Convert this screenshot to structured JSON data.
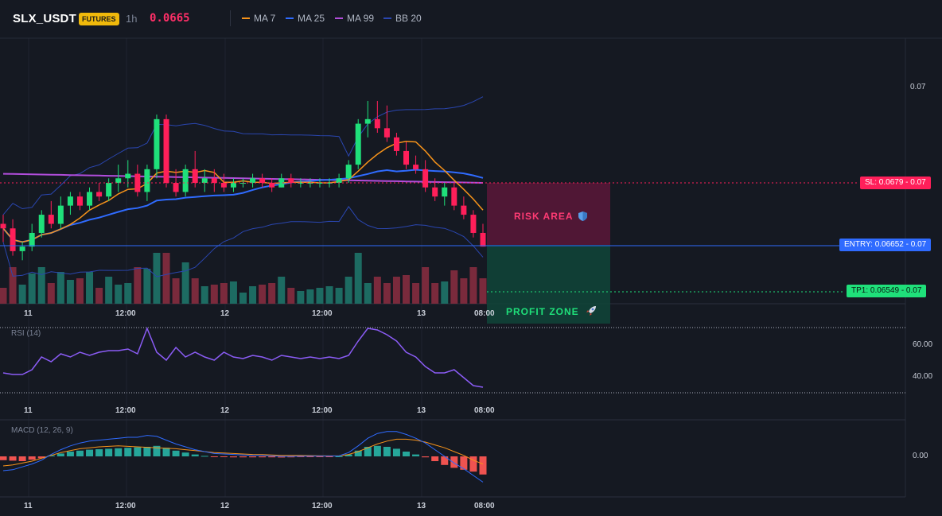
{
  "header": {
    "symbol": "SLX_USDT",
    "badge": "FUTURES",
    "interval": "1h",
    "last_price": "0.0665",
    "indicators": [
      {
        "name": "MA 7",
        "color": "#f7931a"
      },
      {
        "name": "MA 25",
        "color": "#2f6bff"
      },
      {
        "name": "MA 99",
        "color": "#b14ddb"
      },
      {
        "name": "BB 20",
        "color": "#2a46b0"
      }
    ]
  },
  "main_chart": {
    "price_tick": "0.07",
    "levels": {
      "sl": {
        "label": "SL: 0.0679 - 0.07",
        "value": 0.0679,
        "color": "#ff1f5a"
      },
      "entry": {
        "label": "ENTRY: 0.06652 - 0.07",
        "value": 0.06652,
        "color": "#2f6bff"
      },
      "tp1": {
        "label": "TP1: 0.06549 - 0.07",
        "value": 0.06549,
        "color": "#1fe07a"
      }
    },
    "risk_label": "RISK AREA",
    "profit_label": "PROFIT ZONE",
    "shield_icon": "shield-icon",
    "rocket_icon": "rocket-icon"
  },
  "time_axis": [
    "11",
    "12:00",
    "12",
    "12:00",
    "13",
    "08:00"
  ],
  "rsi": {
    "title": "RSI (14)",
    "ticks": [
      "60.00",
      "40.00"
    ],
    "color": "#8b5cf6"
  },
  "macd": {
    "title": "MACD (12, 26, 9)",
    "ticks": [
      "0.00"
    ]
  },
  "chart_data": [
    {
      "type": "candlestick",
      "title": "SLX_USDT 1h",
      "y_ticks": [
        "0.07"
      ],
      "x_ticks": [
        "11",
        "12:00",
        "12",
        "12:00",
        "13",
        "08:00"
      ],
      "series": [
        {
          "name": "MA 7",
          "color": "#f7931a"
        },
        {
          "name": "MA 25",
          "color": "#2f6bff"
        },
        {
          "name": "MA 99",
          "color": "#b14ddb"
        },
        {
          "name": "BB 20",
          "color": "#2a46b0"
        }
      ],
      "candles": [
        [
          0.067,
          0.0672,
          0.0666,
          0.0669
        ],
        [
          0.0669,
          0.0671,
          0.0663,
          0.0664
        ],
        [
          0.0664,
          0.0666,
          0.0662,
          0.0665
        ],
        [
          0.0665,
          0.067,
          0.0664,
          0.0668
        ],
        [
          0.0668,
          0.0673,
          0.0667,
          0.0672
        ],
        [
          0.0672,
          0.0675,
          0.0669,
          0.067
        ],
        [
          0.067,
          0.0676,
          0.0669,
          0.0674
        ],
        [
          0.0674,
          0.0677,
          0.0672,
          0.0676
        ],
        [
          0.0676,
          0.0677,
          0.0673,
          0.0674
        ],
        [
          0.0674,
          0.0678,
          0.0673,
          0.0677
        ],
        [
          0.0677,
          0.0679,
          0.0675,
          0.0676
        ],
        [
          0.0676,
          0.068,
          0.0675,
          0.0679
        ],
        [
          0.0679,
          0.0683,
          0.0677,
          0.068
        ],
        [
          0.068,
          0.0684,
          0.0678,
          0.0681
        ],
        [
          0.0681,
          0.0683,
          0.0676,
          0.0677
        ],
        [
          0.0677,
          0.0683,
          0.0675,
          0.0682
        ],
        [
          0.0682,
          0.0694,
          0.068,
          0.0693
        ],
        [
          0.0693,
          0.0694,
          0.0678,
          0.0679
        ],
        [
          0.0679,
          0.0682,
          0.0676,
          0.0677
        ],
        [
          0.0677,
          0.0683,
          0.0676,
          0.0682
        ],
        [
          0.0682,
          0.0686,
          0.0678,
          0.0679
        ],
        [
          0.0679,
          0.0682,
          0.0677,
          0.068
        ],
        [
          0.068,
          0.0682,
          0.0677,
          0.0679
        ],
        [
          0.0679,
          0.0681,
          0.0677,
          0.0678
        ],
        [
          0.0678,
          0.068,
          0.0677,
          0.0679
        ],
        [
          0.0679,
          0.068,
          0.0678,
          0.0679
        ],
        [
          0.0679,
          0.0681,
          0.0678,
          0.068
        ],
        [
          0.068,
          0.0681,
          0.0678,
          0.0679
        ],
        [
          0.0679,
          0.068,
          0.0677,
          0.0678
        ],
        [
          0.0678,
          0.0681,
          0.0678,
          0.068
        ],
        [
          0.068,
          0.0681,
          0.0678,
          0.0679
        ],
        [
          0.0679,
          0.068,
          0.0678,
          0.0679
        ],
        [
          0.0679,
          0.068,
          0.0678,
          0.0679
        ],
        [
          0.0679,
          0.068,
          0.0678,
          0.0679
        ],
        [
          0.0679,
          0.068,
          0.0678,
          0.0679
        ],
        [
          0.0679,
          0.0681,
          0.0678,
          0.068
        ],
        [
          0.068,
          0.0684,
          0.0679,
          0.0683
        ],
        [
          0.0683,
          0.0693,
          0.0682,
          0.0692
        ],
        [
          0.0692,
          0.0697,
          0.0689,
          0.0693
        ],
        [
          0.0693,
          0.0697,
          0.069,
          0.0691
        ],
        [
          0.0691,
          0.0696,
          0.0688,
          0.0689
        ],
        [
          0.0689,
          0.069,
          0.0685,
          0.0686
        ],
        [
          0.0686,
          0.0688,
          0.0682,
          0.0683
        ],
        [
          0.0683,
          0.0685,
          0.0681,
          0.0682
        ],
        [
          0.0682,
          0.0684,
          0.0677,
          0.0678
        ],
        [
          0.0678,
          0.068,
          0.0675,
          0.0676
        ],
        [
          0.0676,
          0.0679,
          0.0674,
          0.0678
        ],
        [
          0.0678,
          0.0679,
          0.0673,
          0.0674
        ],
        [
          0.0674,
          0.0676,
          0.0671,
          0.0672
        ],
        [
          0.0672,
          0.0673,
          0.0667,
          0.0668
        ],
        [
          0.0668,
          0.067,
          0.0665,
          0.0665
        ]
      ]
    },
    {
      "type": "line",
      "title": "RSI (14)",
      "y_ticks": [
        "60.00",
        "40.00"
      ],
      "values": [
        42,
        41,
        41,
        44,
        52,
        49,
        54,
        52,
        55,
        53,
        55,
        56,
        56,
        57,
        54,
        70,
        55,
        50,
        58,
        52,
        55,
        52,
        50,
        55,
        52,
        51,
        53,
        52,
        50,
        53,
        52,
        51,
        52,
        51,
        52,
        51,
        53,
        62,
        70,
        69,
        66,
        62,
        55,
        52,
        46,
        42,
        42,
        44,
        39,
        34,
        33
      ]
    },
    {
      "type": "bar",
      "title": "MACD (12, 26, 9)",
      "y_ticks": [
        "0.00"
      ],
      "values": [
        -0.4,
        -0.45,
        -0.5,
        -0.35,
        -0.2,
        0.1,
        0.3,
        0.5,
        0.6,
        0.7,
        0.75,
        0.8,
        0.85,
        0.9,
        0.95,
        1.0,
        1.1,
        0.9,
        0.6,
        0.4,
        0.2,
        0.05,
        -0.05,
        -0.08,
        -0.1,
        -0.1,
        -0.1,
        -0.1,
        -0.1,
        -0.12,
        -0.1,
        -0.08,
        -0.05,
        -0.03,
        -0.02,
        0.0,
        0.2,
        0.6,
        1.0,
        1.1,
        1.0,
        0.8,
        0.5,
        0.2,
        -0.1,
        -0.5,
        -0.9,
        -1.2,
        -1.4,
        -1.6,
        -1.9
      ],
      "signal": [
        -1.0,
        -0.9,
        -0.7,
        -0.5,
        -0.2,
        0.1,
        0.4,
        0.6,
        0.8,
        0.9,
        1.0,
        1.05,
        1.1,
        1.05,
        1.0,
        0.95,
        0.9,
        0.85,
        0.8,
        0.7,
        0.6,
        0.5,
        0.4,
        0.35,
        0.3,
        0.25,
        0.2,
        0.18,
        0.15,
        0.1,
        0.1,
        0.1,
        0.08,
        0.06,
        0.05,
        0.05,
        0.2,
        0.5,
        0.9,
        1.3,
        1.6,
        1.8,
        1.8,
        1.7,
        1.5,
        1.2,
        0.9,
        0.5,
        0.1,
        -0.4,
        -0.8
      ],
      "macd_line": [
        -1.5,
        -1.4,
        -1.1,
        -0.8,
        -0.4,
        0.2,
        0.7,
        1.1,
        1.4,
        1.6,
        1.7,
        1.8,
        1.9,
        2.0,
        2.0,
        2.2,
        2.1,
        1.7,
        1.3,
        1.0,
        0.7,
        0.5,
        0.3,
        0.25,
        0.2,
        0.15,
        0.1,
        0.1,
        0.05,
        0.0,
        0.0,
        0.02,
        0.03,
        0.03,
        0.03,
        0.05,
        0.4,
        1.1,
        1.9,
        2.4,
        2.6,
        2.6,
        2.3,
        1.9,
        1.4,
        0.7,
        0.0,
        -0.7,
        -1.3,
        -2.0,
        -2.7
      ]
    }
  ]
}
